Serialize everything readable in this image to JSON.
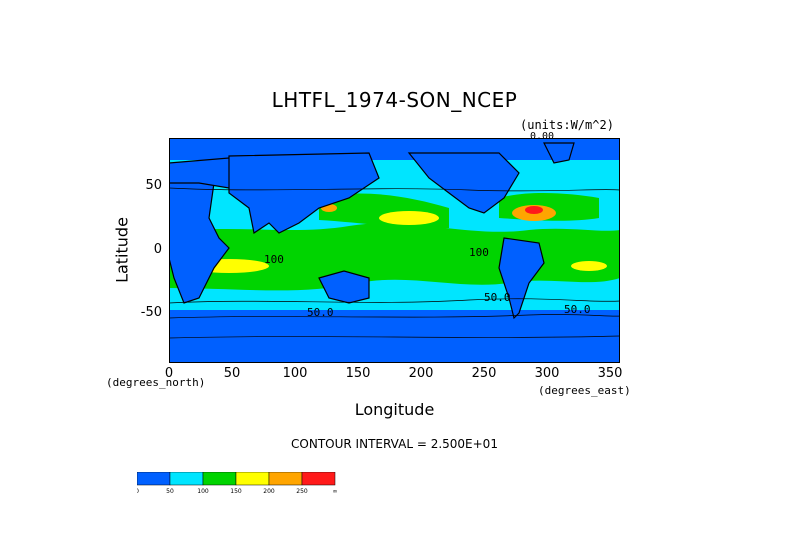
{
  "header": {
    "title": "LHTFL_1974-SON_NCEP",
    "units": "(units:W/m^2)",
    "units_extra": "0.00"
  },
  "footer": {
    "contour_interval": "CONTOUR INTERVAL = 2.500E+01"
  },
  "chart_data": {
    "type": "heatmap",
    "title": "LHTFL_1974-SON_NCEP",
    "xlabel": "Longitude",
    "ylabel": "Latitude",
    "x_units": "(degrees_east)",
    "y_units": "(degrees_north)",
    "xlim": [
      0,
      357.5
    ],
    "ylim": [
      -90,
      90
    ],
    "x_ticks": [
      0,
      50,
      100,
      150,
      200,
      250,
      300,
      350
    ],
    "y_ticks": [
      50,
      0,
      -50
    ],
    "contour_labels": [
      "50.0",
      "50.0",
      "100",
      "100",
      "50.0"
    ],
    "colorbar": {
      "levels": [
        "0",
        "50",
        "100",
        "150",
        "200",
        "250",
        "∞"
      ],
      "colors": [
        "#0060ff",
        "#00e5ff",
        "#00d400",
        "#ffff00",
        "#ffa500",
        "#ff1a1a"
      ]
    },
    "legend_position": "bottom-left"
  }
}
